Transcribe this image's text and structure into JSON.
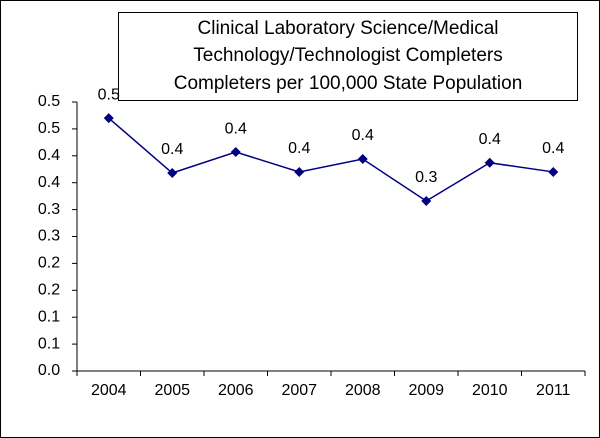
{
  "chart_data": {
    "type": "line",
    "title": [
      "Clinical Laboratory Science/Medical",
      "Technology/Technologist Completers",
      "Completers per 100,000 State Population"
    ],
    "categories": [
      "2004",
      "2005",
      "2006",
      "2007",
      "2008",
      "2009",
      "2010",
      "2011"
    ],
    "series": [
      {
        "name": "Completers per 100,000 State Population",
        "color": "#000080",
        "values": [
          0.47,
          0.368,
          0.407,
          0.37,
          0.394,
          0.316,
          0.387,
          0.37
        ],
        "value_labels": [
          "0.5",
          "0.4",
          "0.4",
          "0.4",
          "0.4",
          "0.3",
          "0.4",
          "0.4"
        ]
      }
    ],
    "ylim": [
      0,
      0.5
    ],
    "yticks": [
      {
        "value": 0,
        "label": "0.0"
      },
      {
        "value": 0.05,
        "label": "0.1"
      },
      0.1,
      {
        "value": 0.15,
        "label": "0.2"
      },
      0.2,
      {
        "value": 0.25,
        "label": "0.3"
      },
      0.3,
      {
        "value": 0.35,
        "label": "0.4"
      },
      0.4,
      {
        "value": 0.45,
        "label": "0.5"
      },
      0.5
    ],
    "grid": false
  }
}
